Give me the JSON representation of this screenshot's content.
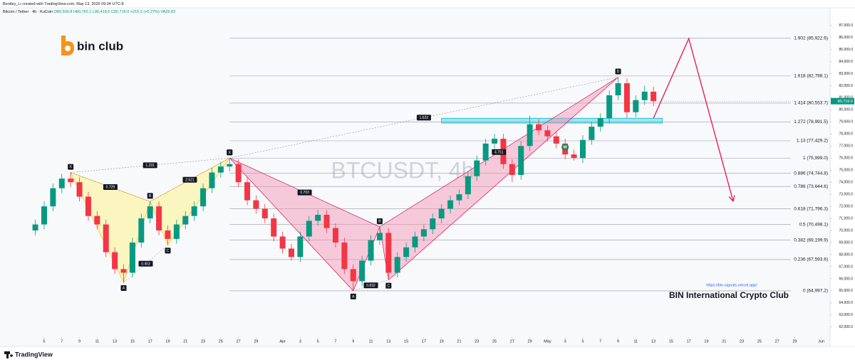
{
  "chart_data": {
    "type": "candlestick",
    "header": "Bentley_Li created with TradingView.com, May 13, 2026 09:04 UTC-8",
    "symbol": "Bitcoin / Tether · 4h · KuCoin",
    "ohlc_text": [
      "O80,500.8",
      "H80,762.1",
      "L80,418.5",
      "C80,716.0",
      "+215.2 (+0.27%)",
      "VA25.83"
    ],
    "watermark": "BTCUSDT, 4h",
    "logo": "bin club",
    "url": "https://bin-signals.vercel.app/",
    "club": "BIN International Crypto Club",
    "footer": "TradingView",
    "up_color": "#089981",
    "down_color": "#f23645",
    "xlim": [
      "2026-02-28",
      "2026-06-02"
    ],
    "ylim": [
      61400,
      87800
    ],
    "grid": false,
    "x": [
      "2026-03-04",
      "2026-03-05",
      "2026-03-06",
      "2026-03-07",
      "2026-03-08",
      "2026-03-09",
      "2026-03-10",
      "2026-03-11",
      "2026-03-12",
      "2026-03-13",
      "2026-03-14",
      "2026-03-15",
      "2026-03-16",
      "2026-03-17",
      "2026-03-18",
      "2026-03-19",
      "2026-03-20",
      "2026-03-21",
      "2026-03-22",
      "2026-03-23",
      "2026-03-24",
      "2026-03-25",
      "2026-03-26",
      "2026-03-27",
      "2026-03-28",
      "2026-03-29",
      "2026-03-30",
      "2026-03-31",
      "2026-04-01",
      "2026-04-02",
      "2026-04-03",
      "2026-04-04",
      "2026-04-05",
      "2026-04-06",
      "2026-04-07",
      "2026-04-08",
      "2026-04-09",
      "2026-04-10",
      "2026-04-11",
      "2026-04-12",
      "2026-04-13",
      "2026-04-14",
      "2026-04-15",
      "2026-04-16",
      "2026-04-17",
      "2026-04-18",
      "2026-04-19",
      "2026-04-20",
      "2026-04-21",
      "2026-04-22",
      "2026-04-23",
      "2026-04-24",
      "2026-04-25",
      "2026-04-26",
      "2026-04-27",
      "2026-04-28",
      "2026-04-29",
      "2026-04-30",
      "2026-05-01",
      "2026-05-02",
      "2026-05-03",
      "2026-05-04",
      "2026-05-05",
      "2026-05-06",
      "2026-05-07",
      "2026-05-08",
      "2026-05-09",
      "2026-05-10",
      "2026-05-11",
      "2026-05-12",
      "2026-05-13"
    ],
    "open": [
      70000,
      70500,
      72000,
      73500,
      74300,
      74000,
      72800,
      71200,
      70500,
      68200,
      66800,
      66500,
      69000,
      71000,
      72000,
      70000,
      69300,
      70500,
      71200,
      72000,
      73500,
      74800,
      75300,
      75500,
      74000,
      72500,
      71800,
      71000,
      69500,
      68500,
      67800,
      69500,
      70800,
      71300,
      70200,
      69000,
      66800,
      65800,
      67500,
      69200,
      69800,
      66500,
      67800,
      68600,
      69500,
      70100,
      71000,
      71800,
      72500,
      73000,
      74500,
      75800,
      77200,
      77600,
      75500,
      74600,
      77000,
      78800,
      78300,
      77800,
      77200,
      76300,
      76000,
      77500,
      78600,
      79300,
      81200,
      82200,
      79800,
      80800,
      81500
    ],
    "high": [
      70900,
      72400,
      73900,
      74700,
      74800,
      74400,
      73200,
      71600,
      70900,
      68600,
      67200,
      69400,
      71400,
      72400,
      72400,
      70400,
      70900,
      71600,
      72400,
      73900,
      75200,
      75700,
      76000,
      75900,
      74400,
      72900,
      72200,
      71400,
      69900,
      68900,
      69900,
      71200,
      71700,
      71700,
      70600,
      69400,
      67200,
      67900,
      69600,
      70300,
      70200,
      68200,
      69000,
      69900,
      70500,
      71400,
      72200,
      72900,
      73400,
      74900,
      76200,
      77600,
      78000,
      78000,
      75900,
      77400,
      79500,
      79200,
      78700,
      78200,
      77600,
      76700,
      77900,
      79000,
      79700,
      81600,
      82700,
      82600,
      81200,
      82000,
      81900
    ],
    "low": [
      69600,
      70100,
      71600,
      73100,
      73600,
      72400,
      70800,
      70100,
      67800,
      66400,
      65700,
      66100,
      68600,
      70600,
      69600,
      68800,
      68900,
      70100,
      70800,
      71600,
      73100,
      74400,
      74900,
      73600,
      72100,
      71400,
      70600,
      69100,
      68100,
      67500,
      67400,
      69100,
      70400,
      69800,
      68600,
      66400,
      65000,
      65400,
      67100,
      68800,
      65900,
      66100,
      67400,
      68200,
      69100,
      69700,
      70600,
      71400,
      72100,
      72600,
      74100,
      75400,
      76800,
      75100,
      74000,
      74200,
      76600,
      77900,
      77400,
      76800,
      75900,
      75800,
      75600,
      77100,
      78200,
      78900,
      80800,
      79300,
      79400,
      80400,
      80300
    ],
    "close": [
      70500,
      72000,
      73500,
      74300,
      74000,
      72800,
      71200,
      70500,
      68200,
      66800,
      66500,
      69000,
      71000,
      72000,
      70000,
      69300,
      70500,
      71200,
      72000,
      73500,
      74800,
      75300,
      75500,
      74000,
      72500,
      71800,
      71000,
      69500,
      68500,
      67800,
      69500,
      70800,
      71300,
      70200,
      69000,
      66800,
      65800,
      67500,
      69200,
      69800,
      66500,
      67800,
      68600,
      69500,
      70100,
      71000,
      71800,
      72500,
      73000,
      74500,
      75800,
      77200,
      77600,
      75500,
      74600,
      77000,
      78800,
      78300,
      77800,
      77200,
      76300,
      76000,
      77500,
      78600,
      79300,
      81200,
      82200,
      79800,
      80800,
      81500,
      80716
    ],
    "yticks": [
      {
        "value": 62000,
        "label": "62,000.0"
      },
      {
        "value": 63000,
        "label": "63,000.0"
      },
      {
        "value": 64000,
        "label": "64,000.0"
      },
      {
        "value": 65000,
        "label": "65,000.0"
      },
      {
        "value": 66000,
        "label": "66,000.0"
      },
      {
        "value": 67000,
        "label": "67,000.0"
      },
      {
        "value": 68000,
        "label": "68,000.0"
      },
      {
        "value": 69000,
        "label": "69,000.0"
      },
      {
        "value": 70000,
        "label": "70,000.0"
      },
      {
        "value": 71000,
        "label": "71,000.0"
      },
      {
        "value": 72000,
        "label": "72,000.0"
      },
      {
        "value": 73000,
        "label": "73,000.0"
      },
      {
        "value": 74000,
        "label": "74,000.0"
      },
      {
        "value": 75000,
        "label": "75,000.0"
      },
      {
        "value": 76000,
        "label": "76,000.0"
      },
      {
        "value": 77000,
        "label": "77,000.0"
      },
      {
        "value": 78000,
        "label": "78,000.0"
      },
      {
        "value": 79000,
        "label": "79,000.0"
      },
      {
        "value": 80000,
        "label": "80,000.0"
      },
      {
        "value": 81000,
        "label": "81,000.0"
      },
      {
        "value": 82000,
        "label": "82,000.0"
      },
      {
        "value": 83000,
        "label": "83,000.0"
      },
      {
        "value": 84000,
        "label": "84,000.0"
      },
      {
        "value": 85000,
        "label": "85,000.0"
      },
      {
        "value": 86000,
        "label": "86,000.0"
      },
      {
        "value": 87000,
        "label": "87,000.0"
      }
    ],
    "xticks": [
      {
        "value": "2026-03-05",
        "label": "5"
      },
      {
        "value": "2026-03-07",
        "label": "7"
      },
      {
        "value": "2026-03-09",
        "label": "9"
      },
      {
        "value": "2026-03-11",
        "label": "11"
      },
      {
        "value": "2026-03-13",
        "label": "13"
      },
      {
        "value": "2026-03-15",
        "label": "15"
      },
      {
        "value": "2026-03-17",
        "label": "17"
      },
      {
        "value": "2026-03-19",
        "label": "19"
      },
      {
        "value": "2026-03-21",
        "label": "21"
      },
      {
        "value": "2026-03-23",
        "label": "23"
      },
      {
        "value": "2026-03-25",
        "label": "25"
      },
      {
        "value": "2026-03-27",
        "label": "27"
      },
      {
        "value": "2026-03-29",
        "label": "29"
      },
      {
        "value": "2026-04-01",
        "label": "Apr"
      },
      {
        "value": "2026-04-03",
        "label": "3"
      },
      {
        "value": "2026-04-05",
        "label": "5"
      },
      {
        "value": "2026-04-07",
        "label": "7"
      },
      {
        "value": "2026-04-09",
        "label": "9"
      },
      {
        "value": "2026-04-11",
        "label": "11"
      },
      {
        "value": "2026-04-13",
        "label": "13"
      },
      {
        "value": "2026-04-15",
        "label": "15"
      },
      {
        "value": "2026-04-17",
        "label": "17"
      },
      {
        "value": "2026-04-19",
        "label": "19"
      },
      {
        "value": "2026-04-21",
        "label": "21"
      },
      {
        "value": "2026-04-23",
        "label": "23"
      },
      {
        "value": "2026-04-25",
        "label": "25"
      },
      {
        "value": "2026-04-27",
        "label": "27"
      },
      {
        "value": "2026-04-29",
        "label": "29"
      },
      {
        "value": "2026-05-01",
        "label": "May"
      },
      {
        "value": "2026-05-03",
        "label": "3"
      },
      {
        "value": "2026-05-05",
        "label": "5"
      },
      {
        "value": "2026-05-07",
        "label": "7"
      },
      {
        "value": "2026-05-09",
        "label": "9"
      },
      {
        "value": "2026-05-11",
        "label": "11"
      },
      {
        "value": "2026-05-13",
        "label": "13"
      },
      {
        "value": "2026-05-15",
        "label": "15"
      },
      {
        "value": "2026-05-17",
        "label": "17"
      },
      {
        "value": "2026-05-19",
        "label": "19"
      },
      {
        "value": "2026-05-21",
        "label": "21"
      },
      {
        "value": "2026-05-23",
        "label": "23"
      },
      {
        "value": "2026-05-25",
        "label": "25"
      },
      {
        "value": "2026-05-27",
        "label": "27"
      },
      {
        "value": "2026-05-29",
        "label": "29"
      },
      {
        "value": "2026-06-01",
        "label": "Jun"
      }
    ],
    "last_price": {
      "value": 80716.0,
      "label": "80,716.0"
    },
    "fib_levels": [
      {
        "price": 85922.6,
        "label": "1.902 (85,922.6)"
      },
      {
        "price": 82798.1,
        "label": "1.618 (82,798.1)"
      },
      {
        "price": 80553.7,
        "label": "1.414 (80,553.7)"
      },
      {
        "price": 78991.5,
        "label": "1.272 (78,991.5)"
      },
      {
        "price": 77429.2,
        "label": "1.13 (77,429.2)"
      },
      {
        "price": 75999.0,
        "label": "1 (75,999.0)"
      },
      {
        "price": 74744.8,
        "label": "0.886 (74,744.8)"
      },
      {
        "price": 73644.6,
        "label": "0.786 (73,644.6)"
      },
      {
        "price": 71796.3,
        "label": "0.618 (71,796.3)"
      },
      {
        "price": 70498.1,
        "label": "0.5 (70,498.1)"
      },
      {
        "price": 69199.9,
        "label": "0.382 (69,199.9)"
      },
      {
        "price": 67593.6,
        "label": "0.236 (67,593.6)"
      },
      {
        "price": 64997.2,
        "label": "0 (64,997.2)"
      }
    ],
    "patterns": [
      {
        "fill": "#fff176",
        "stroke": "#fbc02d",
        "x": [
          "2026-03-08",
          "2026-03-14",
          "2026-03-17",
          "2026-03-19",
          "2026-03-26"
        ],
        "y": [
          74800,
          65700,
          72400,
          68800,
          76000
        ],
        "labels": [
          "X",
          "A",
          "B",
          "C",
          "D"
        ],
        "ratios": [
          "0.729",
          "0.453",
          "2.521",
          "1.231"
        ]
      },
      {
        "fill": "#f48fb1",
        "stroke": "#e91e63",
        "x": [
          "2026-03-26",
          "2026-04-09",
          "2026-04-12",
          "2026-04-13",
          "2026-05-09"
        ],
        "y": [
          76000,
          65000,
          70300,
          65900,
          82700
        ],
        "labels": [
          "X",
          "A",
          "B",
          "C",
          "D"
        ],
        "ratios": [
          "0.703",
          "0.832",
          "4.751",
          "1.622"
        ]
      }
    ],
    "zone": {
      "x": [
        "2026-04-19",
        "2026-05-14"
      ],
      "y": [
        78900,
        79300
      ],
      "color": "#00bcd4"
    },
    "projection": {
      "x": [
        "2026-05-13",
        "2026-05-17",
        "2026-05-22"
      ],
      "y": [
        79300,
        85900,
        72500
      ],
      "color": "#e91e63"
    },
    "w_marker": {
      "label": "W",
      "x": "2026-05-03",
      "y": 76900
    }
  }
}
